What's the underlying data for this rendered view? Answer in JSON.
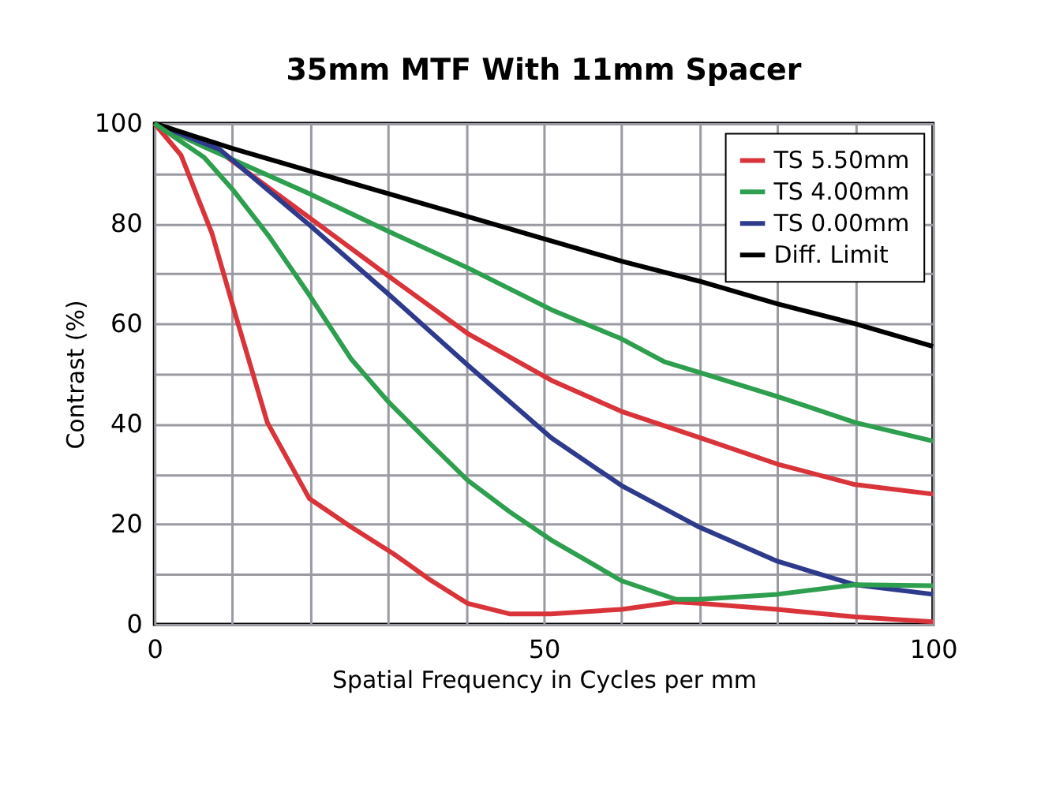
{
  "chart_data": {
    "type": "line",
    "title": "35mm MTF With 11mm Spacer",
    "xlabel": "Spatial Frequency in Cycles per mm",
    "ylabel": "Contrast (%)",
    "xlim": [
      0,
      100
    ],
    "ylim": [
      0,
      100
    ],
    "xticks": [
      0,
      {
        "value": 10,
        "label": null
      },
      {
        "value": 20,
        "label": null
      },
      {
        "value": 30,
        "label": null
      },
      {
        "value": 40,
        "label": null
      },
      50,
      {
        "value": 60,
        "label": null
      },
      {
        "value": 70,
        "label": null
      },
      {
        "value": 80,
        "label": null
      },
      {
        "value": 90,
        "label": null
      },
      100
    ],
    "yticks": [
      0,
      {
        "value": 10,
        "label": null
      },
      20,
      {
        "value": 30,
        "label": null
      },
      40,
      {
        "value": 50,
        "label": null
      },
      60,
      {
        "value": 70,
        "label": null
      },
      80,
      {
        "value": 90,
        "label": null
      },
      100
    ],
    "grid": true,
    "legend": "top right",
    "line_style": "solid",
    "marker": "none",
    "series": [
      {
        "name": "TS 5.50mm",
        "color": "#d9343a",
        "x": [
          0,
          7.1,
          19.9,
          30,
          40.2,
          51,
          60,
          70,
          80,
          90,
          100
        ],
        "values": [
          100,
          95.8,
          81.2,
          69.6,
          58.1,
          48.7,
          42.5,
          37.3,
          32,
          27.9,
          26
        ]
      },
      {
        "name": "TS 4.00mm",
        "color": "#2e9e4f",
        "x": [
          0,
          6.4,
          20,
          30,
          40.2,
          51,
          60,
          65.5,
          70,
          80,
          90,
          100
        ],
        "values": [
          100,
          95.3,
          85.9,
          78.5,
          71.2,
          62.8,
          57,
          52.4,
          50.3,
          45.5,
          40.3,
          36.6
        ]
      },
      {
        "name": "TS 0.00mm",
        "color": "#2e3a8c",
        "x": [
          0,
          8.4,
          20,
          30,
          40.2,
          51,
          60,
          70,
          80,
          90,
          100
        ],
        "values": [
          100,
          94.8,
          79.6,
          66,
          51.8,
          37.2,
          27.7,
          19.4,
          12.6,
          7.9,
          6
        ]
      },
      {
        "name": "Diff. Limit",
        "color": "#000000",
        "x": [
          0,
          10,
          20,
          30,
          40,
          50,
          60,
          70,
          80,
          90,
          100
        ],
        "values": [
          100,
          95,
          90.5,
          86,
          81.5,
          77,
          72.5,
          68.5,
          64,
          60,
          55.5
        ]
      },
      {
        "color": "#d9343a",
        "x": [
          0,
          3.4,
          7.4,
          10.5,
          14.5,
          19.9,
          25.3,
          30.7,
          35.4,
          40.2,
          45.6,
          50.9,
          60,
          67,
          70,
          80,
          90,
          100
        ],
        "values": [
          100,
          93.7,
          78,
          61.3,
          40.3,
          25.1,
          19.4,
          14.1,
          8.9,
          4.2,
          2.1,
          2.1,
          3,
          4.5,
          4.2,
          3,
          1.5,
          0.5
        ]
      },
      {
        "color": "#2e9e4f",
        "x": [
          0,
          6.4,
          10,
          14.7,
          20,
          25.3,
          30,
          35.4,
          40.2,
          45.6,
          51,
          60,
          67,
          70,
          80,
          90,
          100
        ],
        "values": [
          100,
          93.2,
          86.9,
          77.5,
          65.5,
          52.9,
          44.5,
          36.1,
          28.8,
          22.5,
          16.8,
          8.7,
          5,
          5,
          6,
          7.9,
          7.7
        ]
      }
    ]
  }
}
